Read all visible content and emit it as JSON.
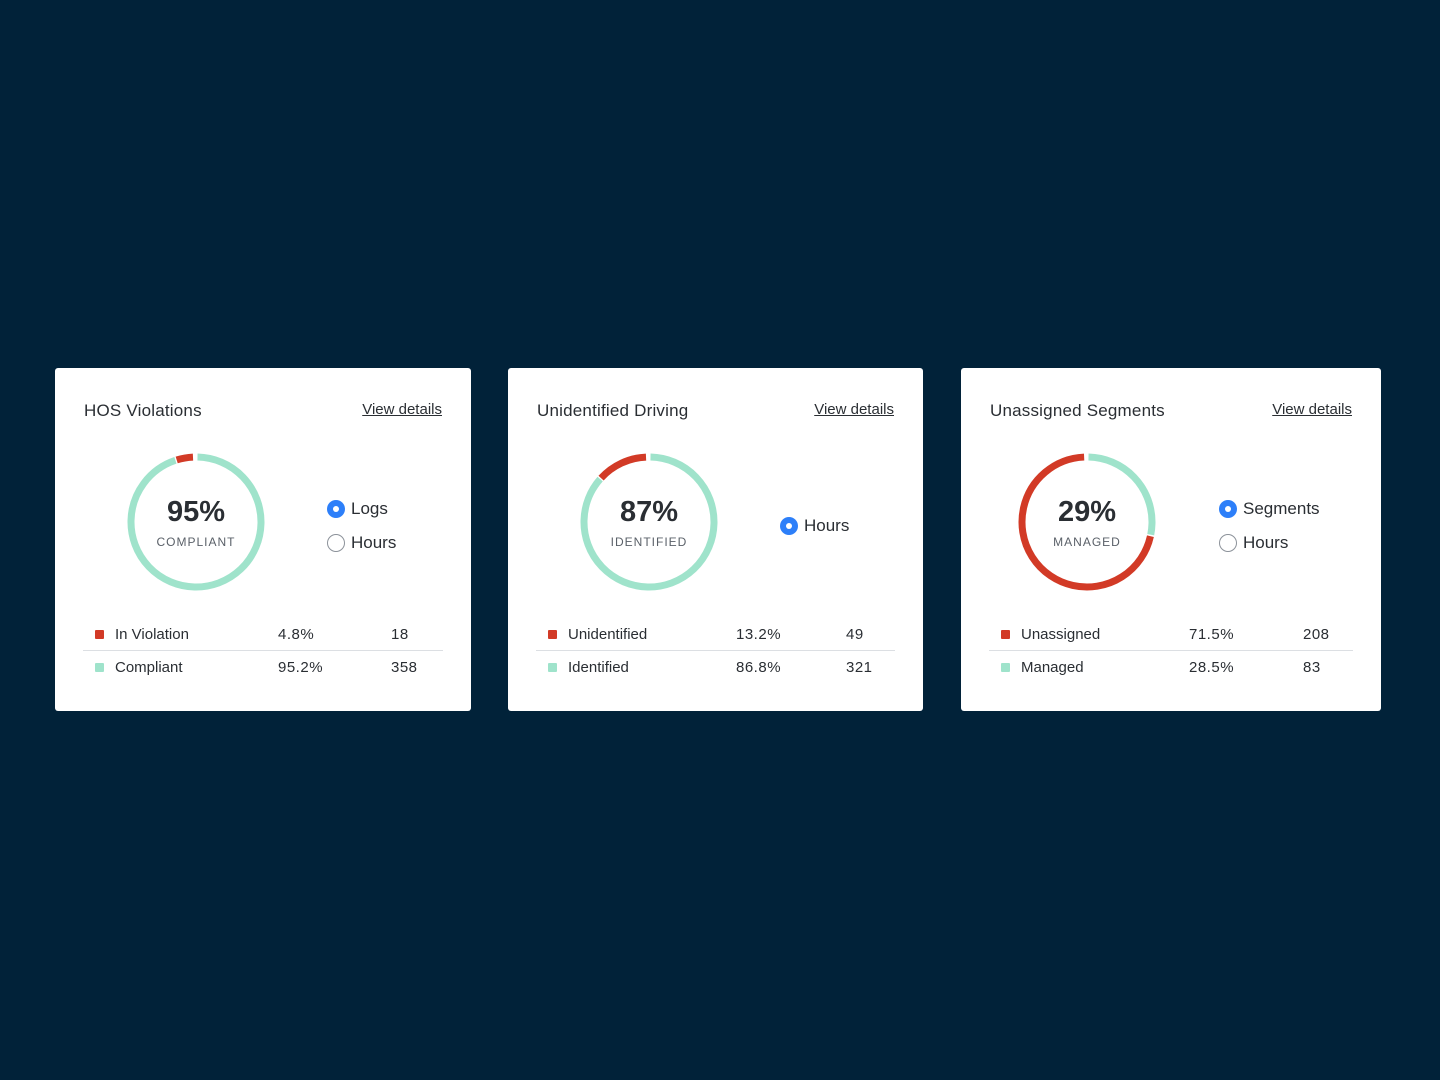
{
  "colors": {
    "background": "#012239",
    "violation": "#d23a26",
    "compliant": "#9fe3cb",
    "accent": "#2d7ff9"
  },
  "cards": [
    {
      "title": "HOS Violations",
      "link": "View details",
      "donut": {
        "value": "95%",
        "caption": "COMPLIANT",
        "red_fraction": 0.048
      },
      "radios": [
        {
          "label": "Logs",
          "checked": true
        },
        {
          "label": "Hours",
          "checked": false
        }
      ],
      "rows": [
        {
          "label": "In Violation",
          "pct": "4.8%",
          "count": "18"
        },
        {
          "label": "Compliant",
          "pct": "95.2%",
          "count": "358"
        }
      ]
    },
    {
      "title": "Unidentified Driving",
      "link": "View details",
      "donut": {
        "value": "87%",
        "caption": "IDENTIFIED",
        "red_fraction": 0.132
      },
      "radios": [
        {
          "label": "Hours",
          "checked": true
        }
      ],
      "rows": [
        {
          "label": "Unidentified",
          "pct": "13.2%",
          "count": "49"
        },
        {
          "label": "Identified",
          "pct": "86.8%",
          "count": "321"
        }
      ]
    },
    {
      "title": "Unassigned Segments",
      "link": "View details",
      "donut": {
        "value": "29%",
        "caption": "MANAGED",
        "red_fraction": 0.715
      },
      "radios": [
        {
          "label": "Segments",
          "checked": true
        },
        {
          "label": "Hours",
          "checked": false
        }
      ],
      "rows": [
        {
          "label": "Unassigned",
          "pct": "71.5%",
          "count": "208"
        },
        {
          "label": "Managed",
          "pct": "28.5%",
          "count": "83"
        }
      ]
    }
  ]
}
